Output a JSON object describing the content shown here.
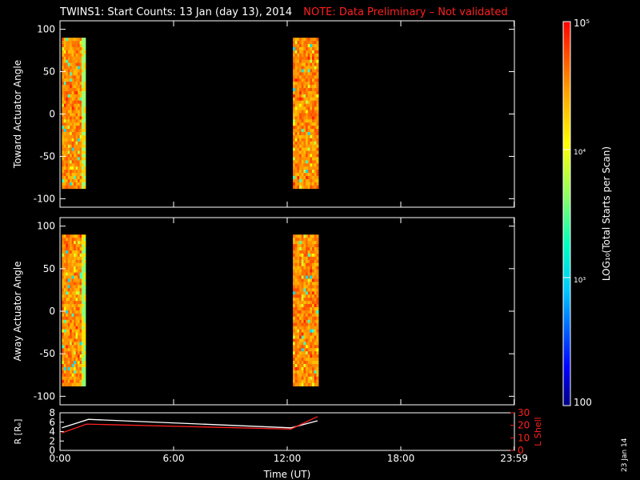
{
  "title": "TWINS1: Start Counts: 13 Jan (day  13), 2014",
  "note": "NOTE: Data Preliminary – Not validated",
  "side_date": "23 Jan 14",
  "colors": {
    "background": "#000000",
    "axes": "#ffffff",
    "note_text": "#ff2020",
    "r_line": "#ffffff",
    "lshell_line": "#ff2020"
  },
  "chart_data": [
    {
      "type": "heatmap",
      "ylabel": "Toward Actuator Angle",
      "ylim": [
        -110,
        110
      ],
      "yticks": [
        -100,
        -50,
        0,
        50,
        100
      ],
      "xlim_hours": [
        0,
        24
      ],
      "xticks": [
        "0:00",
        "6:00",
        "12:00",
        "18:00",
        "23:59"
      ],
      "data_blocks": [
        {
          "start_hour": 0.1,
          "end_hour": 1.35,
          "angle_range": [
            -88,
            90
          ]
        },
        {
          "start_hour": 12.3,
          "end_hour": 13.65,
          "angle_range": [
            -88,
            90
          ]
        }
      ]
    },
    {
      "type": "heatmap",
      "ylabel": "Away Actuator Angle",
      "ylim": [
        -110,
        110
      ],
      "yticks": [
        -100,
        -50,
        0,
        50,
        100
      ],
      "xlim_hours": [
        0,
        24
      ],
      "xticks": [
        "0:00",
        "6:00",
        "12:00",
        "18:00",
        "23:59"
      ],
      "data_blocks": [
        {
          "start_hour": 0.1,
          "end_hour": 1.35,
          "angle_range": [
            -88,
            90
          ]
        },
        {
          "start_hour": 12.3,
          "end_hour": 13.65,
          "angle_range": [
            -88,
            90
          ]
        }
      ]
    },
    {
      "type": "line",
      "ylabel_left": "R [Rₑ]",
      "ylabel_right": "L Shell",
      "xlabel": "Time (UT)",
      "ylim_left": [
        0,
        8
      ],
      "yticks_left": [
        0,
        2,
        4,
        6,
        8
      ],
      "ylim_right": [
        0,
        30
      ],
      "yticks_right": [
        0,
        10,
        20,
        30
      ],
      "xticks": [
        "0:00",
        "6:00",
        "12:00",
        "18:00",
        "23:59"
      ],
      "series": [
        {
          "name": "R [Rₑ]",
          "axis": "left",
          "x": [
            0.1,
            1.5,
            12.2,
            13.6
          ],
          "y": [
            4.8,
            6.6,
            4.8,
            6.3
          ]
        },
        {
          "name": "L Shell",
          "axis": "right",
          "x": [
            0.1,
            1.4,
            12.2,
            13.6
          ],
          "y": [
            14,
            21,
            17,
            27
          ]
        }
      ]
    }
  ],
  "colorbar": {
    "label": "LOG₁₀(Total Starts per Scan)",
    "range": [
      100,
      100000
    ],
    "ticks": [
      {
        "value": 100,
        "label": "100"
      },
      {
        "value": 1000,
        "label": "10³"
      },
      {
        "value": 10000,
        "label": "10⁴"
      },
      {
        "value": 100000,
        "label": "10⁵"
      }
    ]
  }
}
